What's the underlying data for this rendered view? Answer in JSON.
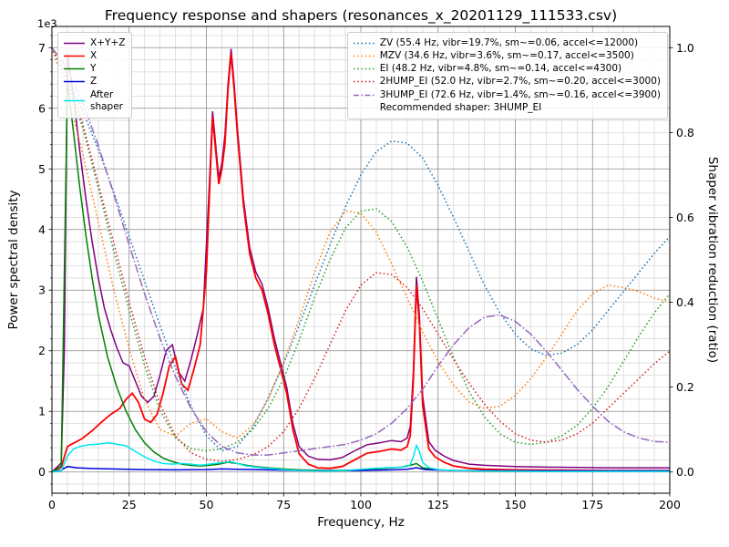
{
  "chart_data": {
    "type": "line",
    "title": "Frequency response and shapers (resonances_x_20201129_111533.csv)",
    "xlabel": "Frequency, Hz",
    "ylabel": "Power spectral density",
    "ylabel_right": "Shaper vibration reduction (ratio)",
    "y_left_offset_text": "1e3",
    "xlim": [
      0,
      200
    ],
    "ylim_left": [
      -350,
      7350
    ],
    "ylim_right": [
      -0.05,
      1.05
    ],
    "x_major_ticks": [
      0,
      25,
      50,
      75,
      100,
      125,
      150,
      175,
      200
    ],
    "x_tick_labels": [
      "0",
      "25",
      "50",
      "75",
      "100",
      "125",
      "150",
      "175",
      "200"
    ],
    "x_minor_step": 5,
    "y_left_major_ticks": [
      0,
      1000,
      2000,
      3000,
      4000,
      5000,
      6000,
      7000
    ],
    "y_left_tick_labels": [
      "0",
      "1",
      "2",
      "3",
      "4",
      "5",
      "6",
      "7"
    ],
    "y_left_minor_step": 200,
    "y_right_major_ticks": [
      0,
      0.2,
      0.4,
      0.6,
      0.8,
      1.0
    ],
    "y_right_tick_labels": [
      "0.0",
      "0.2",
      "0.4",
      "0.6",
      "0.8",
      "1.0"
    ],
    "grid": {
      "major_color": "#8a8a8a",
      "minor_color": "#d9d9d9"
    },
    "legend_position_left": "upper left",
    "legend_position_right": "upper right",
    "recommended_note": "Recommended shaper: 3HUMP_EI",
    "psd_series": [
      {
        "name": "x-y-z",
        "label": "X+Y+Z",
        "color": "#800080",
        "style": "solid",
        "width": 1.5,
        "x": [
          0,
          3,
          4,
          5,
          7,
          9,
          11,
          13,
          15,
          17,
          19,
          21,
          23,
          25,
          27,
          29,
          31,
          33,
          35,
          37,
          39,
          41,
          43,
          45,
          47,
          49,
          51,
          52,
          53,
          54,
          55,
          56,
          57,
          58,
          59,
          60,
          62,
          64,
          66,
          68,
          70,
          72,
          74,
          76,
          78,
          80,
          83,
          86,
          90,
          94,
          98,
          102,
          106,
          110,
          113,
          115,
          116,
          117,
          118,
          119,
          120,
          122,
          124,
          127,
          130,
          135,
          140,
          150,
          160,
          180,
          200
        ],
        "y": [
          0,
          150,
          2000,
          6900,
          6200,
          5300,
          4500,
          3800,
          3200,
          2700,
          2350,
          2050,
          1800,
          1750,
          1500,
          1250,
          1150,
          1250,
          1600,
          2000,
          2100,
          1650,
          1500,
          1850,
          2250,
          2700,
          4800,
          5950,
          5400,
          4850,
          5100,
          5550,
          6400,
          6980,
          6400,
          5700,
          4500,
          3700,
          3300,
          3100,
          2700,
          2200,
          1800,
          1400,
          800,
          420,
          260,
          210,
          200,
          240,
          350,
          450,
          480,
          520,
          500,
          560,
          750,
          1650,
          3220,
          2550,
          1250,
          500,
          360,
          260,
          190,
          130,
          110,
          90,
          80,
          70,
          70
        ]
      },
      {
        "name": "x",
        "label": "X",
        "color": "#ff0000",
        "style": "solid",
        "width": 1.8,
        "x": [
          0,
          3,
          5,
          6,
          8,
          10,
          13,
          16,
          19,
          22,
          24,
          26,
          28,
          30,
          32,
          34,
          36,
          38,
          40,
          42,
          44,
          46,
          48,
          50,
          51,
          52,
          53,
          54,
          55,
          56,
          57,
          58,
          59,
          60,
          62,
          64,
          66,
          68,
          70,
          72,
          74,
          76,
          78,
          80,
          83,
          86,
          90,
          94,
          98,
          102,
          106,
          110,
          113,
          115,
          116,
          117,
          118,
          119,
          120,
          122,
          124,
          127,
          130,
          135,
          140,
          150,
          160,
          180,
          200
        ],
        "y": [
          0,
          80,
          420,
          450,
          500,
          560,
          680,
          820,
          950,
          1050,
          1200,
          1300,
          1150,
          870,
          820,
          950,
          1300,
          1750,
          1900,
          1450,
          1350,
          1700,
          2100,
          3300,
          4600,
          5850,
          5300,
          4750,
          5000,
          5400,
          6300,
          6900,
          6300,
          5600,
          4400,
          3600,
          3200,
          3000,
          2600,
          2100,
          1700,
          1300,
          700,
          300,
          130,
          70,
          60,
          90,
          200,
          310,
          340,
          380,
          360,
          420,
          600,
          1500,
          3080,
          2400,
          1100,
          380,
          250,
          160,
          100,
          60,
          45,
          35,
          30,
          25,
          25
        ]
      },
      {
        "name": "y",
        "label": "Y",
        "color": "#008000",
        "style": "solid",
        "width": 1.5,
        "x": [
          0,
          3,
          5,
          7,
          9,
          11,
          13,
          15,
          18,
          21,
          24,
          27,
          30,
          33,
          36,
          39,
          42,
          45,
          48,
          51,
          54,
          57,
          60,
          63,
          66,
          70,
          75,
          80,
          90,
          100,
          108,
          113,
          116,
          118,
          120,
          124,
          130,
          140,
          160,
          200
        ],
        "y": [
          0,
          100,
          6450,
          5600,
          4700,
          3900,
          3200,
          2600,
          1900,
          1400,
          1000,
          700,
          480,
          330,
          230,
          170,
          130,
          110,
          100,
          110,
          130,
          160,
          140,
          110,
          90,
          70,
          50,
          35,
          25,
          35,
          60,
          80,
          110,
          140,
          70,
          40,
          25,
          20,
          15,
          15
        ]
      },
      {
        "name": "z",
        "label": "Z",
        "color": "#0000dd",
        "style": "solid",
        "width": 1.5,
        "x": [
          0,
          3,
          5,
          8,
          12,
          16,
          20,
          25,
          30,
          40,
          50,
          55,
          60,
          70,
          80,
          90,
          100,
          110,
          115,
          118,
          121,
          130,
          150,
          200
        ],
        "y": [
          0,
          30,
          90,
          70,
          60,
          55,
          50,
          45,
          40,
          35,
          40,
          50,
          45,
          35,
          25,
          20,
          25,
          35,
          45,
          70,
          40,
          25,
          20,
          20
        ]
      },
      {
        "name": "after-shaper",
        "label": "After\nshaper",
        "color": "#00e5ee",
        "style": "solid",
        "width": 1.5,
        "x": [
          0,
          3,
          5,
          7,
          9,
          12,
          15,
          18,
          21,
          24,
          27,
          30,
          33,
          36,
          39,
          42,
          45,
          48,
          51,
          54,
          56,
          58,
          60,
          63,
          66,
          70,
          75,
          80,
          90,
          95,
          100,
          104,
          108,
          112,
          115,
          116,
          117,
          118,
          119,
          120,
          122,
          125,
          130,
          140,
          160,
          200
        ],
        "y": [
          0,
          20,
          260,
          380,
          420,
          450,
          460,
          480,
          460,
          430,
          340,
          250,
          180,
          140,
          130,
          140,
          130,
          110,
          130,
          150,
          160,
          170,
          140,
          100,
          80,
          60,
          40,
          25,
          15,
          25,
          45,
          60,
          70,
          75,
          90,
          120,
          250,
          440,
          330,
          160,
          70,
          40,
          25,
          15,
          10,
          10
        ]
      }
    ],
    "shaper_x": [
      0,
      5,
      10,
      15,
      20,
      25,
      30,
      35,
      40,
      45,
      50,
      55,
      60,
      65,
      70,
      75,
      80,
      85,
      90,
      95,
      100,
      105,
      110,
      115,
      120,
      125,
      130,
      135,
      140,
      145,
      150,
      155,
      160,
      165,
      170,
      175,
      180,
      185,
      190,
      195,
      200
    ],
    "shaper_series": [
      {
        "name": "zv",
        "label": "ZV (55.4 Hz, vibr=19.7%, sm~=0.06, accel<=12000)",
        "color": "#1f77b4",
        "style": "dotted",
        "width": 1.5,
        "y": [
          1.0,
          0.93,
          0.85,
          0.76,
          0.66,
          0.555,
          0.45,
          0.345,
          0.245,
          0.155,
          0.085,
          0.05,
          0.06,
          0.105,
          0.175,
          0.255,
          0.345,
          0.44,
          0.535,
          0.625,
          0.7,
          0.755,
          0.78,
          0.775,
          0.74,
          0.675,
          0.6,
          0.52,
          0.44,
          0.375,
          0.325,
          0.29,
          0.275,
          0.28,
          0.3,
          0.335,
          0.38,
          0.425,
          0.47,
          0.515,
          0.555
        ]
      },
      {
        "name": "mzv",
        "label": "MZV (34.6 Hz, vibr=3.6%, sm~=0.17, accel<=3500)",
        "color": "#ff7f0e",
        "style": "dotted",
        "width": 1.5,
        "y": [
          1.0,
          0.89,
          0.75,
          0.59,
          0.43,
          0.29,
          0.17,
          0.1,
          0.085,
          0.115,
          0.125,
          0.095,
          0.08,
          0.11,
          0.17,
          0.26,
          0.36,
          0.47,
          0.565,
          0.615,
          0.61,
          0.565,
          0.49,
          0.41,
          0.33,
          0.26,
          0.205,
          0.165,
          0.15,
          0.155,
          0.18,
          0.22,
          0.27,
          0.325,
          0.38,
          0.42,
          0.44,
          0.435,
          0.425,
          0.41,
          0.4
        ]
      },
      {
        "name": "ei",
        "label": "EI (48.2 Hz, vibr=4.8%, sm~=0.14, accel<=4300)",
        "color": "#2ca02c",
        "style": "dotted",
        "width": 1.5,
        "y": [
          1.0,
          0.92,
          0.81,
          0.67,
          0.52,
          0.38,
          0.25,
          0.145,
          0.08,
          0.055,
          0.05,
          0.055,
          0.07,
          0.1,
          0.15,
          0.22,
          0.31,
          0.41,
          0.5,
          0.575,
          0.615,
          0.62,
          0.59,
          0.53,
          0.45,
          0.36,
          0.27,
          0.19,
          0.13,
          0.09,
          0.07,
          0.065,
          0.07,
          0.085,
          0.11,
          0.15,
          0.2,
          0.26,
          0.32,
          0.375,
          0.42
        ]
      },
      {
        "name": "2hump-ei",
        "label": "2HUMP_EI (52.0 Hz, vibr=2.7%, sm~=0.20, accel<=3000)",
        "color": "#d62728",
        "style": "dotted",
        "width": 1.5,
        "y": [
          1.0,
          0.93,
          0.82,
          0.68,
          0.54,
          0.4,
          0.27,
          0.16,
          0.085,
          0.045,
          0.03,
          0.025,
          0.03,
          0.04,
          0.06,
          0.095,
          0.15,
          0.22,
          0.3,
          0.38,
          0.44,
          0.47,
          0.465,
          0.435,
          0.385,
          0.325,
          0.265,
          0.21,
          0.16,
          0.12,
          0.09,
          0.075,
          0.07,
          0.075,
          0.09,
          0.115,
          0.15,
          0.185,
          0.22,
          0.255,
          0.285
        ]
      },
      {
        "name": "3hump-ei",
        "label": "3HUMP_EI (72.6 Hz, vibr=1.4%, sm~=0.16, accel<=3900)",
        "color": "#9467bd",
        "style": "dashdot",
        "width": 1.5,
        "y": [
          1.0,
          0.95,
          0.87,
          0.77,
          0.655,
          0.535,
          0.42,
          0.315,
          0.225,
          0.15,
          0.095,
          0.06,
          0.045,
          0.04,
          0.04,
          0.045,
          0.05,
          0.055,
          0.06,
          0.065,
          0.075,
          0.09,
          0.115,
          0.15,
          0.195,
          0.25,
          0.3,
          0.34,
          0.365,
          0.37,
          0.355,
          0.325,
          0.285,
          0.24,
          0.195,
          0.155,
          0.12,
          0.095,
          0.08,
          0.072,
          0.07
        ]
      }
    ]
  }
}
